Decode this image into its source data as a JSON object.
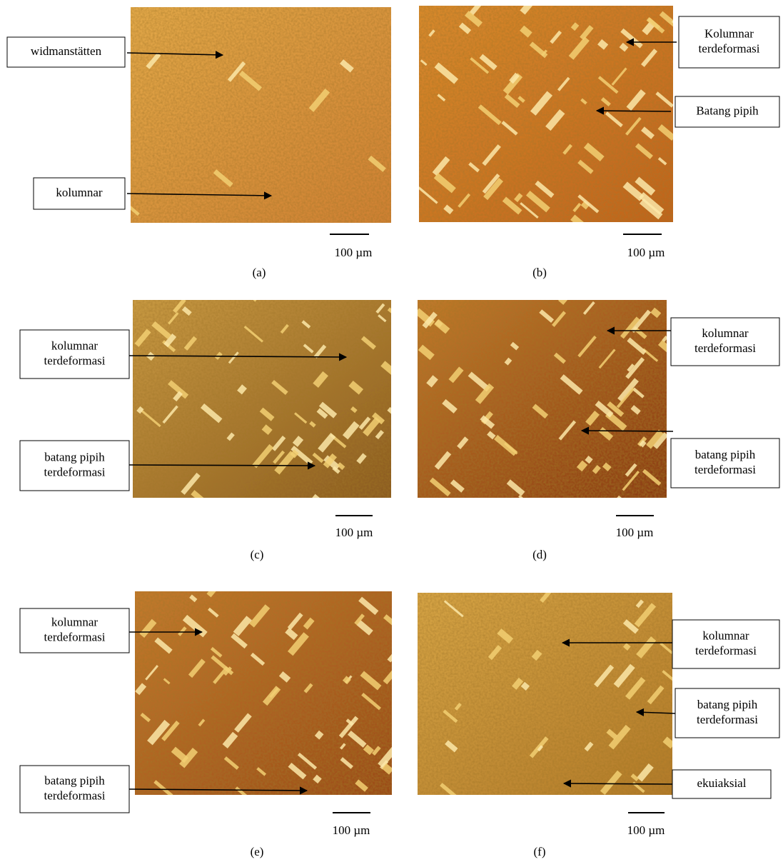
{
  "panels": [
    {
      "caption": "(a)",
      "scale": "100 µm",
      "labels": [
        {
          "lines": [
            "widmanstätten"
          ]
        },
        {
          "lines": [
            "kolumnar"
          ]
        }
      ]
    },
    {
      "caption": "(b)",
      "scale": "100 µm",
      "labels": [
        {
          "lines": [
            "Kolumnar",
            "terdeformasi"
          ]
        },
        {
          "lines": [
            "Batang  pipih"
          ]
        }
      ]
    },
    {
      "caption": "(c)",
      "scale": "100 µm",
      "labels": [
        {
          "lines": [
            "kolumnar",
            "terdeformasi"
          ]
        },
        {
          "lines": [
            "batang pipih",
            "terdeformasi"
          ]
        }
      ]
    },
    {
      "caption": "(d)",
      "scale": "100 µm",
      "labels": [
        {
          "lines": [
            "kolumnar",
            "terdeformasi"
          ]
        },
        {
          "lines": [
            "batang pipih",
            "terdeformasi"
          ]
        }
      ]
    },
    {
      "caption": "(e)",
      "scale": "100 µm",
      "labels": [
        {
          "lines": [
            "kolumnar",
            "terdeformasi"
          ]
        },
        {
          "lines": [
            "batang pipih",
            "terdeformasi"
          ]
        }
      ]
    },
    {
      "caption": "(f)",
      "scale": "100 µm",
      "labels": [
        {
          "lines": [
            "kolumnar",
            "terdeformasi"
          ]
        },
        {
          "lines": [
            "batang pipih",
            "terdeformasi"
          ]
        },
        {
          "lines": [
            "ekuiaksial"
          ]
        }
      ]
    }
  ]
}
